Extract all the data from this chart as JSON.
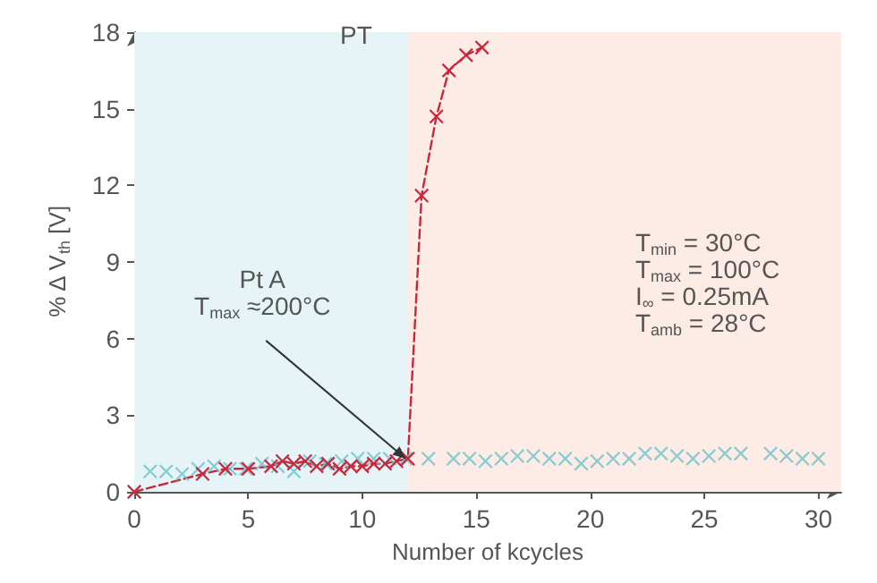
{
  "chart_data": {
    "type": "line",
    "xlabel": "Number of kcycles",
    "ylabel": "% Δ V$_{th}$ [V]",
    "xlim": [
      0,
      31
    ],
    "xticks": [
      0,
      5,
      10,
      15,
      20,
      25,
      30
    ],
    "ylim": [
      0,
      18
    ],
    "yticks": [
      0,
      3,
      6,
      9,
      12,
      15,
      18
    ],
    "grid": false,
    "marker": "cross",
    "bands": [
      {
        "axis": "x",
        "from": 0,
        "to": 12,
        "color": "#e6f4f7"
      },
      {
        "axis": "x",
        "from": 12,
        "to": 31,
        "color": "#fdebe5"
      }
    ],
    "annotations": [
      "PT",
      {
        "text": "Pt A\nT$_{max}$ ≈200°C",
        "x": 11.9,
        "y": 1.3
      },
      "T$_{min}$ = 30°C\nT$_{max}$ = 100°C\nI$_{∞}$ = 0.25mA\nT$_{amb}$ = 28°C"
    ],
    "series": [
      {
        "type": "scatter",
        "color": "#6cc3cb",
        "x": [
          0,
          0.7,
          1.4,
          2.1,
          2.8,
          3.5,
          4.2,
          4.9,
          5.6,
          6.3,
          7.0,
          7.7,
          8.4,
          9.1,
          9.8,
          10.5,
          11.2,
          11.9,
          12.9,
          14.0,
          14.7,
          15.4,
          16.1,
          16.8,
          17.5,
          18.2,
          18.9,
          19.6,
          20.3,
          21.0,
          21.7,
          22.4,
          23.1,
          23.8,
          24.5,
          25.2,
          25.9,
          26.6,
          27.9,
          28.6,
          29.3,
          30.0
        ],
        "values": [
          0,
          0.8,
          0.8,
          0.7,
          0.9,
          1.0,
          0.9,
          0.9,
          1.1,
          1.0,
          0.8,
          1.2,
          1.1,
          1.2,
          1.3,
          1.3,
          1.3,
          1.3,
          1.3,
          1.3,
          1.3,
          1.2,
          1.3,
          1.4,
          1.4,
          1.3,
          1.3,
          1.1,
          1.2,
          1.3,
          1.3,
          1.5,
          1.5,
          1.4,
          1.3,
          1.4,
          1.5,
          1.5,
          1.5,
          1.4,
          1.3,
          1.3
        ]
      },
      {
        "color": "#c8283c",
        "line_style": "dashed",
        "x": [
          0,
          3.0,
          4.0,
          5.0,
          6.0,
          6.5,
          7.0,
          7.5,
          8.0,
          8.5,
          9.0,
          9.5,
          10.0,
          10.5,
          11.0,
          11.5,
          12.0,
          12.6,
          13.25,
          13.8,
          14.55,
          15.25
        ],
        "values": [
          0,
          0.7,
          0.9,
          0.9,
          1.0,
          1.2,
          1.1,
          1.2,
          1.0,
          1.1,
          0.9,
          1.0,
          1.0,
          1.1,
          1.1,
          1.2,
          1.3,
          11.6,
          14.7,
          16.5,
          17.1,
          17.4
        ]
      }
    ]
  }
}
